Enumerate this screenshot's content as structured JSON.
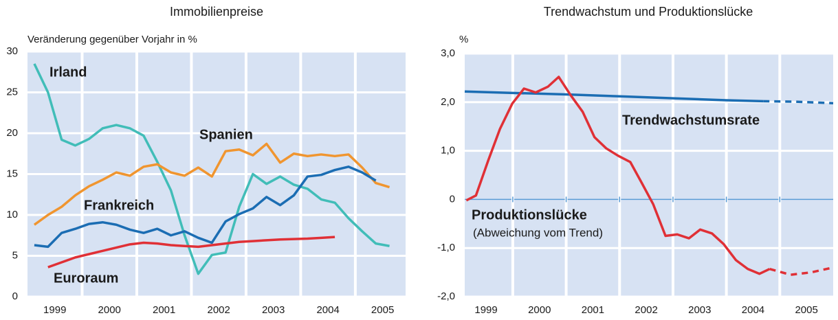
{
  "chart_data": [
    {
      "type": "line",
      "title": "Immobilienpreise",
      "y_label": "Veränderung gegenüber Vorjahr in %",
      "xlim": [
        1999,
        2005.92
      ],
      "ylim": [
        0,
        30
      ],
      "yticks": [
        0,
        5,
        10,
        15,
        20,
        25,
        30
      ],
      "xticks": [
        {
          "value": 1999.5,
          "label": "1999"
        },
        {
          "value": 2000.5,
          "label": "2000"
        },
        {
          "value": 2001.5,
          "label": "2001"
        },
        {
          "value": 2002.5,
          "label": "2002"
        },
        {
          "value": 2003.5,
          "label": "2003"
        },
        {
          "value": 2004.5,
          "label": "2004"
        },
        {
          "value": 2005.5,
          "label": "2005"
        }
      ],
      "grid": true,
      "x": [
        1999.125,
        1999.375,
        1999.625,
        1999.875,
        2000.125,
        2000.375,
        2000.625,
        2000.875,
        2001.125,
        2001.375,
        2001.625,
        2001.875,
        2002.125,
        2002.375,
        2002.625,
        2002.875,
        2003.125,
        2003.375,
        2003.625,
        2003.875,
        2004.125,
        2004.375,
        2004.625,
        2004.875,
        2005.125,
        2005.375,
        2005.625
      ],
      "series": [
        {
          "name": "Irland",
          "color": "#41bdb8",
          "values": [
            28.5,
            25,
            19.2,
            18.5,
            19.3,
            20.6,
            21,
            20.6,
            19.7,
            16.5,
            13,
            7.5,
            2.8,
            5.1,
            5.4,
            11,
            15,
            13.8,
            14.7,
            13.7,
            13.2,
            11.9,
            11.5,
            9.6,
            8,
            6.5,
            6.2
          ]
        },
        {
          "name": "Spanien",
          "color": "#f0952f",
          "values": [
            8.8,
            10,
            11,
            12.4,
            13.5,
            14.3,
            15.2,
            14.8,
            15.9,
            16.2,
            15.2,
            14.8,
            15.8,
            14.7,
            17.8,
            18,
            17.3,
            18.7,
            16.4,
            17.5,
            17.2,
            17.4,
            17.2,
            17.4,
            15.8,
            13.9,
            13.4
          ]
        },
        {
          "name": "Frankreich",
          "color": "#1b6db3",
          "values": [
            6.3,
            6.1,
            7.8,
            8.3,
            8.9,
            9.1,
            8.8,
            8.2,
            7.8,
            8.3,
            7.5,
            8,
            7.2,
            6.6,
            9.2,
            10.1,
            10.8,
            12.2,
            11.2,
            12.4,
            14.7,
            14.9,
            15.5,
            15.9,
            15.2,
            14.2,
            null
          ]
        },
        {
          "name": "Euroraum",
          "color": "#e03036",
          "values": [
            null,
            3.6,
            4.2,
            4.8,
            5.2,
            5.6,
            6,
            6.4,
            6.6,
            6.5,
            6.3,
            6.2,
            6.1,
            6.3,
            6.5,
            6.7,
            6.8,
            6.9,
            7,
            7.05,
            7.1,
            7.2,
            7.3,
            null,
            null,
            null,
            null
          ]
        }
      ]
    },
    {
      "type": "line",
      "title": "Trendwachstum und Produktionslücke",
      "y_label": "%",
      "xlim": [
        1999.1,
        2006
      ],
      "ylim": [
        -2,
        3
      ],
      "yticks": [
        {
          "value": -2,
          "label": "-2,0"
        },
        {
          "value": -1,
          "label": "-1,0"
        },
        0,
        {
          "value": 1,
          "label": "1,0"
        },
        {
          "value": 2,
          "label": "2,0"
        },
        {
          "value": 3,
          "label": "3,0"
        }
      ],
      "xticks": [
        {
          "value": 1999.5,
          "label": "1999"
        },
        {
          "value": 2000.5,
          "label": "2000"
        },
        {
          "value": 2001.5,
          "label": "2001"
        },
        {
          "value": 2002.5,
          "label": "2002"
        },
        {
          "value": 2003.5,
          "label": "2003"
        },
        {
          "value": 2004.5,
          "label": "2004"
        },
        {
          "value": 2005.5,
          "label": "2005"
        }
      ],
      "grid": true,
      "annotation": "(Abweichung vom Trend)",
      "series": [
        {
          "name": "Trendwachstumsrate",
          "color": "#1b6db3",
          "x": [
            1999.1,
            2000,
            2001,
            2002,
            2003,
            2004,
            2004.69
          ],
          "values": [
            2.22,
            2.19,
            2.16,
            2.12,
            2.08,
            2.04,
            2.02
          ]
        },
        {
          "color": "#1b6db3",
          "style": "dashed",
          "x": [
            2004.69,
            2005.3,
            2006
          ],
          "values": [
            2.02,
            2.01,
            1.98
          ]
        },
        {
          "name": "Produktionslücke",
          "color": "#e03036",
          "x": [
            1999.13,
            1999.31,
            1999.54,
            1999.76,
            1999.99,
            2000.21,
            2000.43,
            2000.66,
            2000.86,
            2001.08,
            2001.31,
            2001.53,
            2001.75,
            2001.97,
            2002.2,
            2002.41,
            2002.63,
            2002.86,
            2003.08,
            2003.3,
            2003.51,
            2003.73,
            2003.95,
            2004.18,
            2004.4,
            2004.62,
            2004.81
          ],
          "values": [
            -0.02,
            0.08,
            0.8,
            1.45,
            1.97,
            2.28,
            2.2,
            2.32,
            2.52,
            2.15,
            1.8,
            1.28,
            1.05,
            0.9,
            0.77,
            0.35,
            -0.1,
            -0.75,
            -0.72,
            -0.8,
            -0.62,
            -0.7,
            -0.92,
            -1.25,
            -1.43,
            -1.53,
            -1.43
          ]
        },
        {
          "color": "#e03036",
          "style": "dashed",
          "x": [
            2004.81,
            2005.2,
            2005.59,
            2006
          ],
          "values": [
            -1.43,
            -1.55,
            -1.5,
            -1.4
          ]
        }
      ]
    }
  ]
}
